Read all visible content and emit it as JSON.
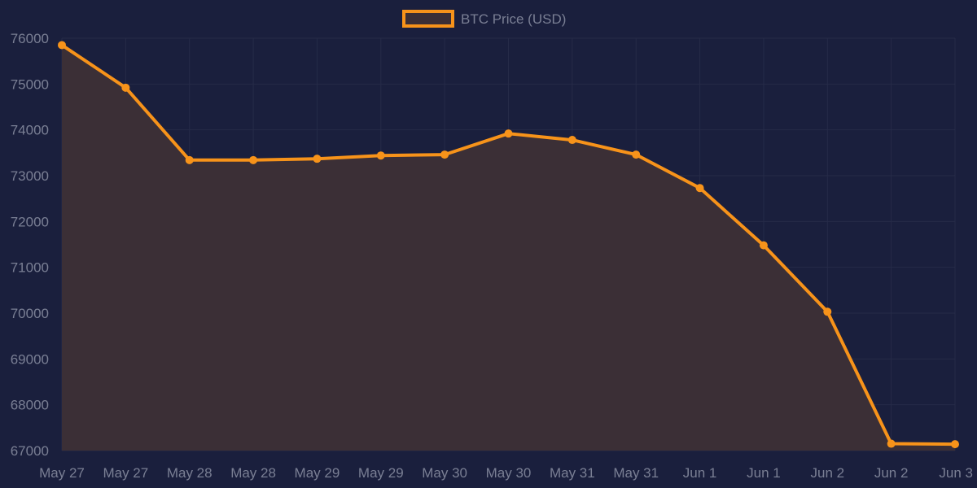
{
  "chart_data": {
    "type": "line",
    "title": "",
    "xlabel": "",
    "ylabel": "",
    "categories": [
      "May 27",
      "May 27",
      "May 28",
      "May 28",
      "May 29",
      "May 29",
      "May 30",
      "May 30",
      "May 31",
      "May 31",
      "Jun 1",
      "Jun 1",
      "Jun 2",
      "Jun 2",
      "Jun 3"
    ],
    "series": [
      {
        "name": "BTC Price (USD)",
        "values": [
          75850,
          74920,
          73340,
          73340,
          73370,
          73440,
          73460,
          73920,
          73780,
          73460,
          72730,
          71480,
          70030,
          67150,
          67140
        ]
      }
    ],
    "ylim": [
      67000,
      76000
    ],
    "yticks": [
      "76000",
      "75000",
      "74000",
      "73000",
      "72000",
      "71000",
      "70000",
      "69000",
      "68000",
      "67000"
    ],
    "legend_position": "top-center",
    "grid": true,
    "fill": true,
    "colors": {
      "background": "#1a1f3d",
      "line": "#f7931a",
      "fill": "#3b2f36",
      "grid": "#262b48",
      "text": "#7a7f94"
    }
  }
}
